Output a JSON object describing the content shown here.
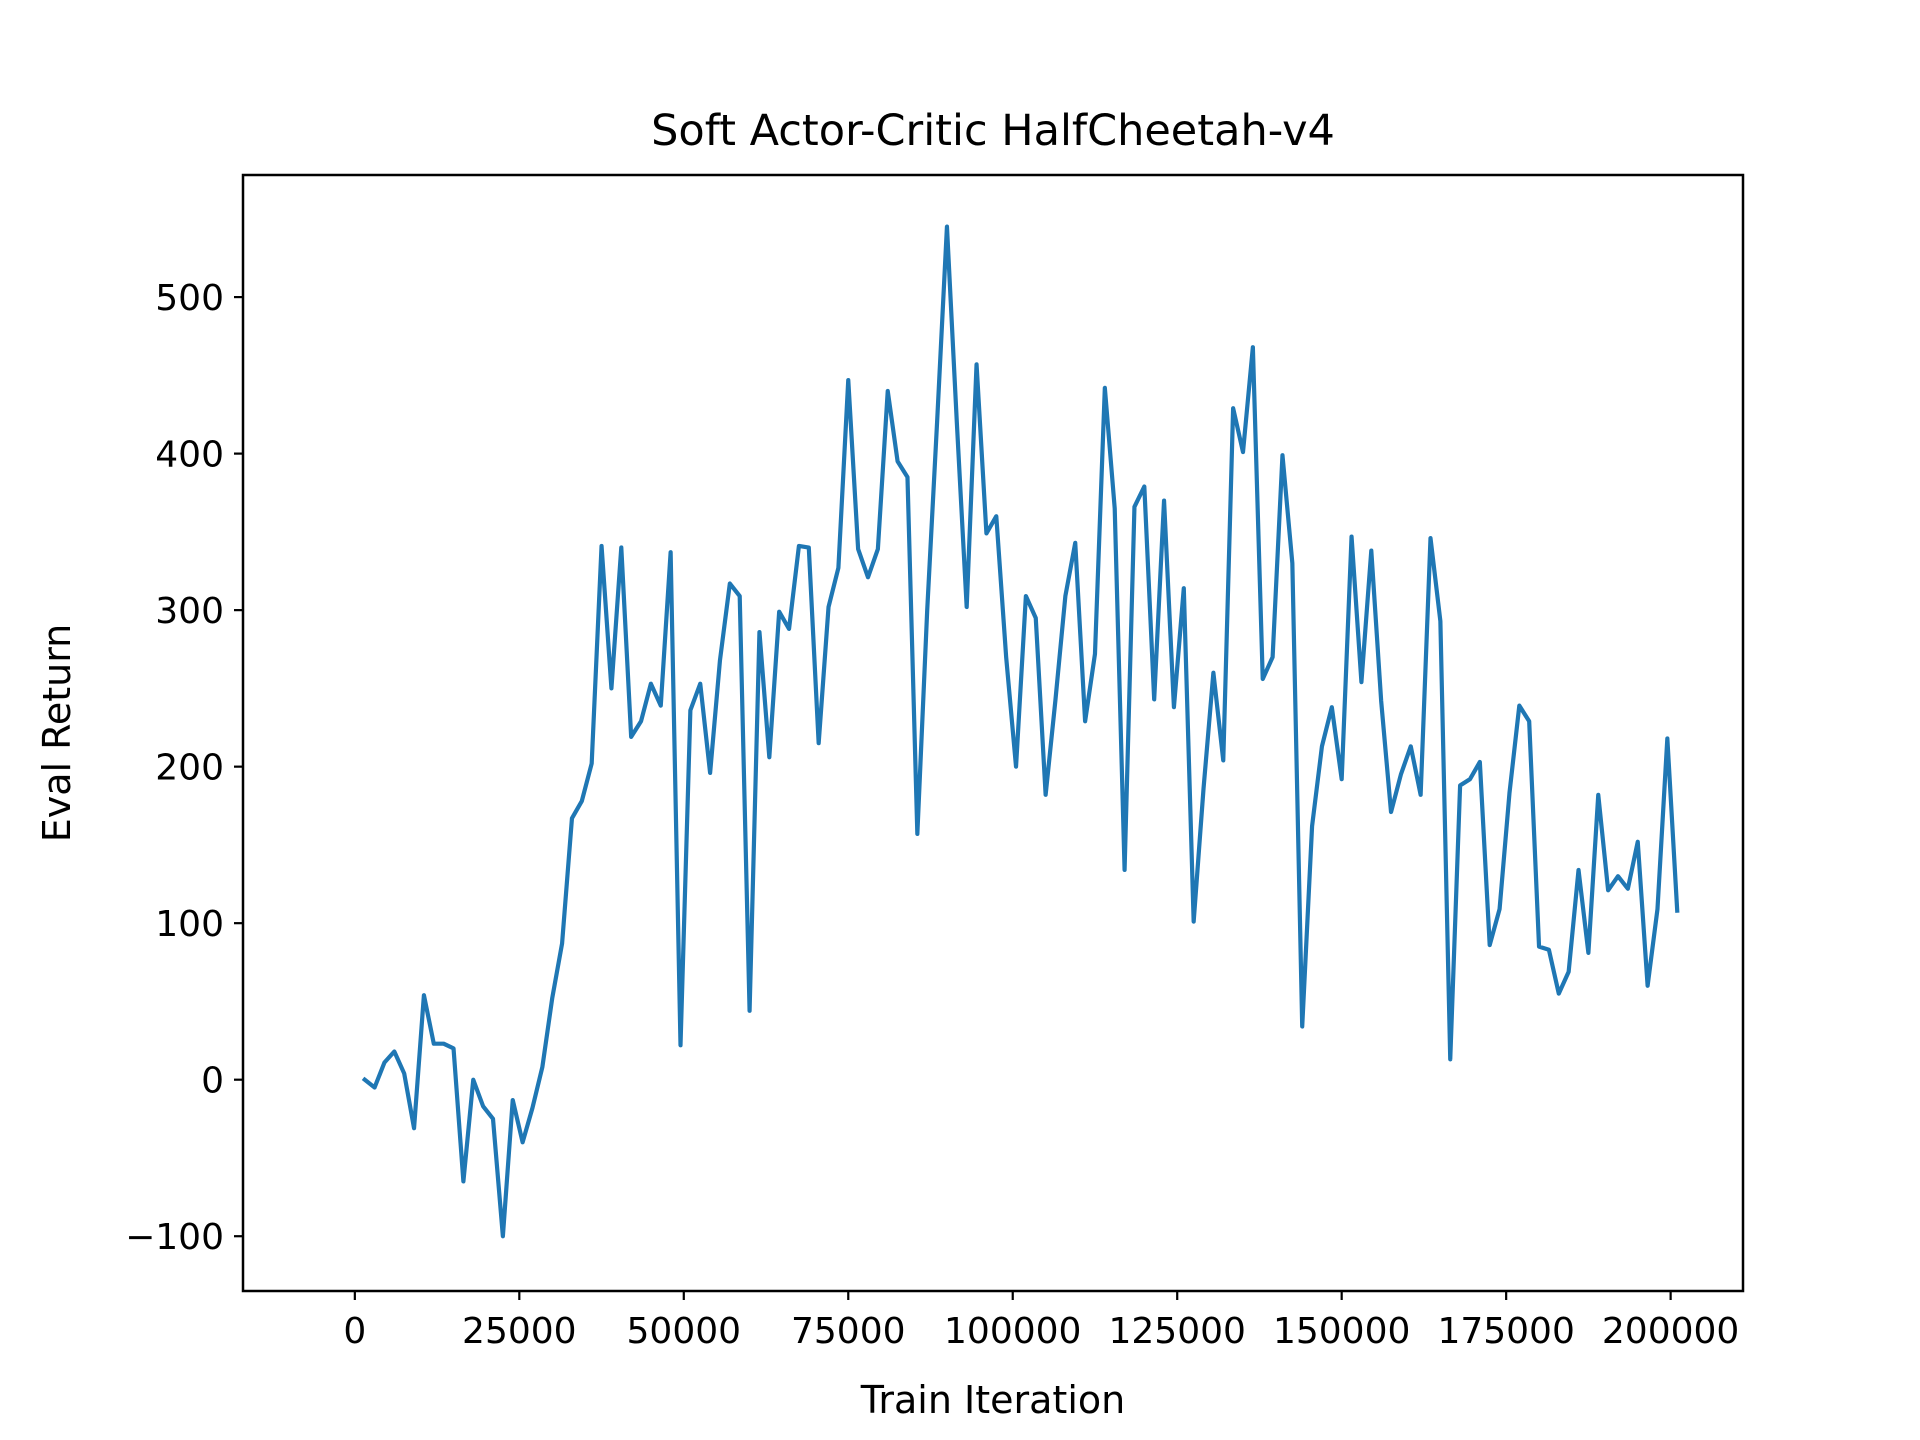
{
  "chart_data": {
    "type": "line",
    "title": "Soft Actor-Critic HalfCheetah-v4",
    "xlabel": "Train Iteration",
    "ylabel": "Eval Return",
    "xlim": [
      -17000,
      211000
    ],
    "ylim": [
      -135,
      578
    ],
    "xticks": [
      0,
      25000,
      50000,
      75000,
      100000,
      125000,
      150000,
      175000,
      200000
    ],
    "xtick_labels": [
      "0",
      "25000",
      "50000",
      "75000",
      "100000",
      "125000",
      "150000",
      "175000",
      "200000"
    ],
    "yticks": [
      -100,
      0,
      100,
      200,
      300,
      400,
      500
    ],
    "ytick_labels": [
      "−100",
      "0",
      "100",
      "200",
      "300",
      "400",
      "500"
    ],
    "grid": false,
    "legend": "none",
    "colors": {
      "series": "#1f77b4",
      "axes": "#000000",
      "background": "#ffffff"
    },
    "series": [
      {
        "x": [
          1500,
          3000,
          4500,
          6000,
          7500,
          9000,
          10500,
          12000,
          13500,
          15000,
          16500,
          18000,
          19500,
          21000,
          22500,
          24000,
          25500,
          27000,
          28500,
          30000,
          31500,
          33000,
          34500,
          36000,
          37500,
          39000,
          40500,
          42000,
          43500,
          45000,
          46500,
          48000,
          49500,
          51000,
          52500,
          54000,
          55500,
          57000,
          58500,
          60000,
          61500,
          63000,
          64500,
          66000,
          67500,
          69000,
          70500,
          72000,
          73500,
          75000,
          76500,
          78000,
          79500,
          81000,
          82500,
          84000,
          85500,
          87000,
          88500,
          90000,
          91500,
          93000,
          94500,
          96000,
          97500,
          99000,
          100500,
          102000,
          103500,
          105000,
          106500,
          108000,
          109500,
          111000,
          112500,
          114000,
          115500,
          117000,
          118500,
          120000,
          121500,
          123000,
          124500,
          126000,
          127500,
          129000,
          130500,
          132000,
          133500,
          135000,
          136500,
          138000,
          139500,
          141000,
          142500,
          144000,
          145500,
          147000,
          148500,
          150000,
          151500,
          153000,
          154500,
          156000,
          157500,
          159000,
          160500,
          162000,
          163500,
          165000,
          166500,
          168000,
          169500,
          171000,
          172500,
          174000,
          175500,
          177000,
          178500,
          180000,
          181500,
          183000,
          184500,
          186000,
          187500,
          189000,
          190500,
          192000,
          193500,
          195000,
          196500,
          198000,
          199500,
          201000
        ],
        "values": [
          0,
          -5,
          11,
          18,
          4,
          -31,
          54,
          23,
          23,
          20,
          -65,
          0,
          -17,
          -25,
          -100,
          -13,
          -40,
          -18,
          8,
          52,
          87,
          167,
          178,
          202,
          341,
          250,
          340,
          219,
          229,
          253,
          239,
          337,
          22,
          236,
          253,
          196,
          268,
          317,
          309,
          44,
          286,
          206,
          299,
          288,
          341,
          340,
          215,
          302,
          327,
          447,
          339,
          321,
          339,
          440,
          395,
          385,
          157,
          300,
          420,
          545,
          420,
          302,
          457,
          349,
          360,
          270,
          200,
          309,
          295,
          182,
          243,
          309,
          343,
          229,
          272,
          442,
          365,
          134,
          366,
          379,
          243,
          370,
          238,
          314,
          101,
          186,
          260,
          204,
          429,
          401,
          468,
          256,
          270,
          399,
          330,
          34,
          162,
          213,
          238,
          192,
          347,
          254,
          338,
          242,
          171,
          195,
          213,
          182,
          346,
          293,
          13,
          188,
          192,
          203,
          86,
          109,
          183,
          239,
          229,
          85,
          83,
          55,
          69,
          134,
          81,
          182,
          121,
          130,
          122,
          152,
          60,
          109,
          218,
          108
        ]
      }
    ]
  }
}
